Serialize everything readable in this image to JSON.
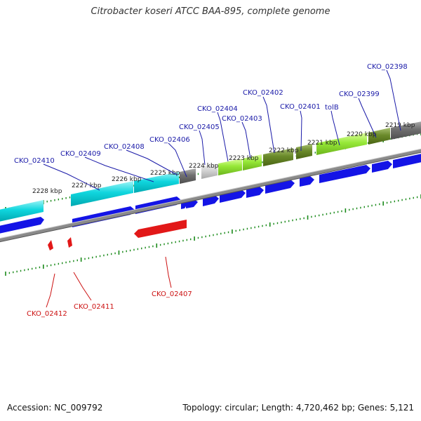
{
  "title": "Citrobacter koseri ATCC BAA-895, complete genome",
  "footer": {
    "accession": "Accession: NC_009792",
    "topology": "Topology: circular; Length: 4,720,462 bp; Genes: 5,121"
  },
  "ticks": [
    "2228 kbp",
    "2227 kbp",
    "2226 kbp",
    "2225 kbp",
    "2224 kbp",
    "2223 kbp",
    "2222 kbp",
    "2221 kbp",
    "2220 kbp",
    "2219 kbp"
  ],
  "genes_top": [
    "CKO_02410",
    "CKO_02409",
    "CKO_02408",
    "CKO_02406",
    "CKO_02405",
    "CKO_02404",
    "CKO_02403",
    "CKO_02402",
    "CKO_02401",
    "tolB",
    "CKO_02399",
    "CKO_02398"
  ],
  "genes_bottom": [
    "CKO_02412",
    "CKO_02411",
    "CKO_02407"
  ],
  "colors": {
    "forward": "#1010e0",
    "reverse": "#e01010",
    "cyan": "#00d0d8",
    "lime": "#90e030",
    "olive": "#608020",
    "gray": "#707070",
    "lightgray": "#c8c8c8"
  }
}
